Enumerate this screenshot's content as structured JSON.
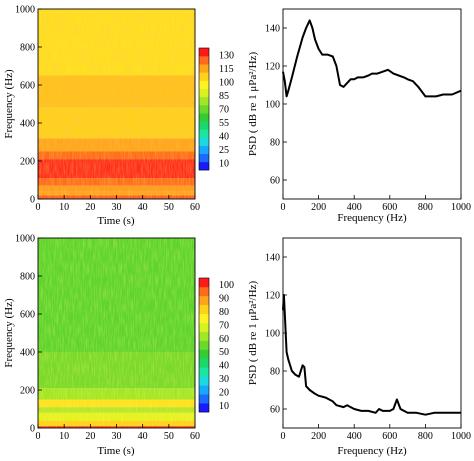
{
  "chart_data": [
    {
      "type": "heatmap",
      "id": "spec1",
      "xlabel": "Time (s)",
      "ylabel": "Frequency (Hz)",
      "xlim": [
        0,
        60
      ],
      "ylim": [
        0,
        1000
      ],
      "xticks": [
        0,
        10,
        20,
        30,
        40,
        50,
        60
      ],
      "yticks": [
        0,
        200,
        400,
        600,
        800,
        1000
      ],
      "colorbar": {
        "ticks": [
          10,
          25,
          40,
          55,
          70,
          85,
          100,
          115,
          130
        ],
        "colors": [
          "#1a1aff",
          "#1a6bff",
          "#1aa7ff",
          "#1ad9e0",
          "#1ae6a0",
          "#1ad96b",
          "#33cc33",
          "#6bd92b",
          "#a3e626",
          "#d6f21f",
          "#fff21f",
          "#ffd21a",
          "#ffa51a",
          "#ff6b1a",
          "#ff1a1a"
        ]
      },
      "bands": [
        {
          "f": [
            0,
            20
          ],
          "color": "#ff5a1f"
        },
        {
          "f": [
            20,
            40
          ],
          "color": "#ffa51a"
        },
        {
          "f": [
            40,
            70
          ],
          "color": "#ff9a1a"
        },
        {
          "f": [
            70,
            110
          ],
          "color": "#ff6b1a"
        },
        {
          "f": [
            110,
            210
          ],
          "color": "#ff2a1a"
        },
        {
          "f": [
            210,
            250
          ],
          "color": "#ff6b1a"
        },
        {
          "f": [
            250,
            320
          ],
          "color": "#ffa51a"
        },
        {
          "f": [
            320,
            480
          ],
          "color": "#ffd21a"
        },
        {
          "f": [
            480,
            650
          ],
          "color": "#ffc21a"
        },
        {
          "f": [
            650,
            1000
          ],
          "color": "#ffe11f"
        }
      ]
    },
    {
      "type": "line",
      "id": "psd1",
      "xlabel": "Frequency (Hz)",
      "ylabel": "PSD ( dB re 1 μPa²/Hz)",
      "xlim": [
        0,
        1000
      ],
      "ylim": [
        50,
        150
      ],
      "xticks": [
        0,
        200,
        400,
        600,
        800,
        1000
      ],
      "yticks": [
        60,
        80,
        100,
        120,
        140
      ],
      "x": [
        0,
        10,
        20,
        30,
        50,
        80,
        110,
        130,
        150,
        165,
        180,
        200,
        220,
        250,
        280,
        300,
        320,
        340,
        360,
        380,
        400,
        420,
        450,
        480,
        500,
        530,
        560,
        590,
        620,
        650,
        680,
        700,
        730,
        760,
        800,
        830,
        860,
        900,
        950,
        1000
      ],
      "values": [
        117,
        112,
        104,
        107,
        114,
        125,
        135,
        140,
        144,
        140,
        134,
        129,
        126,
        126,
        125,
        120,
        110,
        109,
        111,
        113,
        113,
        114,
        114,
        115,
        116,
        116,
        117,
        118,
        116,
        115,
        114,
        113,
        112,
        109,
        104,
        104,
        104,
        105,
        105,
        107
      ]
    },
    {
      "type": "heatmap",
      "id": "spec2",
      "xlabel": "Time (s)",
      "ylabel": "Frequency (Hz)",
      "xlim": [
        0,
        60
      ],
      "ylim": [
        0,
        1000
      ],
      "xticks": [
        0,
        10,
        20,
        30,
        40,
        50,
        60
      ],
      "yticks": [
        0,
        200,
        400,
        600,
        800,
        1000
      ],
      "colorbar": {
        "ticks": [
          10,
          20,
          30,
          40,
          50,
          60,
          70,
          80,
          90,
          100
        ],
        "colors": [
          "#1a1aff",
          "#1a6bff",
          "#1aa7ff",
          "#1ad9e0",
          "#1ae6a0",
          "#1ad96b",
          "#33cc33",
          "#6bd92b",
          "#a3e626",
          "#d6f21f",
          "#fff21f",
          "#ffd21a",
          "#ffa51a",
          "#ff6b1a",
          "#ff1a1a"
        ]
      },
      "bands": [
        {
          "f": [
            0,
            10
          ],
          "color": "#ff3a1a"
        },
        {
          "f": [
            10,
            40
          ],
          "color": "#ffd21a"
        },
        {
          "f": [
            40,
            80
          ],
          "color": "#e6f21f"
        },
        {
          "f": [
            80,
            110
          ],
          "color": "#b8e626"
        },
        {
          "f": [
            110,
            150
          ],
          "color": "#ffe11f"
        },
        {
          "f": [
            150,
            210
          ],
          "color": "#a3e626"
        },
        {
          "f": [
            210,
            400
          ],
          "color": "#7ad92b"
        },
        {
          "f": [
            400,
            1000
          ],
          "color": "#5fd42e"
        }
      ]
    },
    {
      "type": "line",
      "id": "psd2",
      "xlabel": "Frequency (Hz)",
      "ylabel": "PSD ( dB re 1 μPa²/Hz)",
      "xlim": [
        0,
        1000
      ],
      "ylim": [
        50,
        150
      ],
      "xticks": [
        0,
        200,
        400,
        600,
        800,
        1000
      ],
      "yticks": [
        60,
        80,
        100,
        120,
        140
      ],
      "x": [
        0,
        5,
        10,
        20,
        30,
        50,
        70,
        90,
        110,
        120,
        130,
        150,
        180,
        200,
        240,
        280,
        300,
        340,
        360,
        400,
        440,
        480,
        520,
        540,
        560,
        600,
        620,
        640,
        660,
        700,
        750,
        800,
        850,
        900,
        950,
        1000
      ],
      "values": [
        112,
        120,
        110,
        90,
        86,
        80,
        78,
        77,
        83,
        82,
        72,
        70,
        68,
        67,
        66,
        64,
        62,
        61,
        62,
        60,
        59,
        59,
        58,
        60,
        59,
        59,
        60,
        65,
        60,
        58,
        58,
        57,
        58,
        58,
        58,
        58
      ]
    }
  ]
}
